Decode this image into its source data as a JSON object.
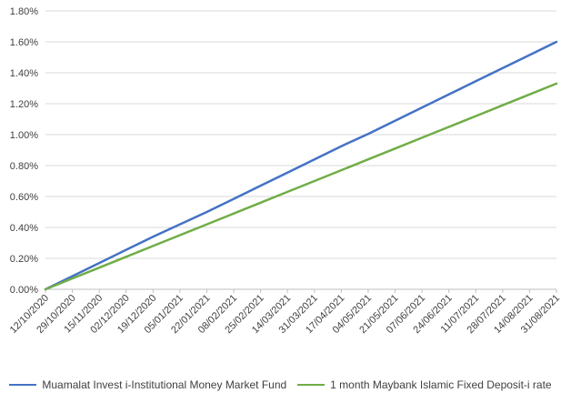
{
  "chart_data": {
    "type": "line",
    "title": "",
    "xlabel": "",
    "ylabel": "",
    "categories": [
      "12/10/2020",
      "29/10/2020",
      "15/11/2020",
      "02/12/2020",
      "19/12/2020",
      "05/01/2021",
      "22/01/2021",
      "08/02/2021",
      "25/02/2021",
      "14/03/2021",
      "31/03/2021",
      "17/04/2021",
      "04/05/2021",
      "21/05/2021",
      "07/06/2021",
      "24/06/2021",
      "11/07/2021",
      "28/07/2021",
      "14/08/2021",
      "31/08/2021"
    ],
    "y_ticks": [
      "0.00%",
      "0.20%",
      "0.40%",
      "0.60%",
      "0.80%",
      "1.00%",
      "1.20%",
      "1.40%",
      "1.60%",
      "1.80%"
    ],
    "ylim": [
      0,
      1.8
    ],
    "grid": true,
    "legend_position": "bottom",
    "series": [
      {
        "name": "Muamalat Invest i-Institutional Money Market Fund",
        "color": "#4472c4",
        "values": [
          0.0,
          0.085,
          0.17,
          0.255,
          0.34,
          0.42,
          0.5,
          0.585,
          0.67,
          0.755,
          0.84,
          0.925,
          1.005,
          1.09,
          1.175,
          1.26,
          1.345,
          1.43,
          1.515,
          1.6
        ]
      },
      {
        "name": "1 month Maybank Islamic Fixed Deposit-i rate",
        "color": "#70ad47",
        "values": [
          0.0,
          0.07,
          0.14,
          0.21,
          0.28,
          0.35,
          0.42,
          0.49,
          0.56,
          0.63,
          0.7,
          0.77,
          0.84,
          0.91,
          0.98,
          1.05,
          1.12,
          1.19,
          1.26,
          1.33
        ]
      }
    ]
  }
}
